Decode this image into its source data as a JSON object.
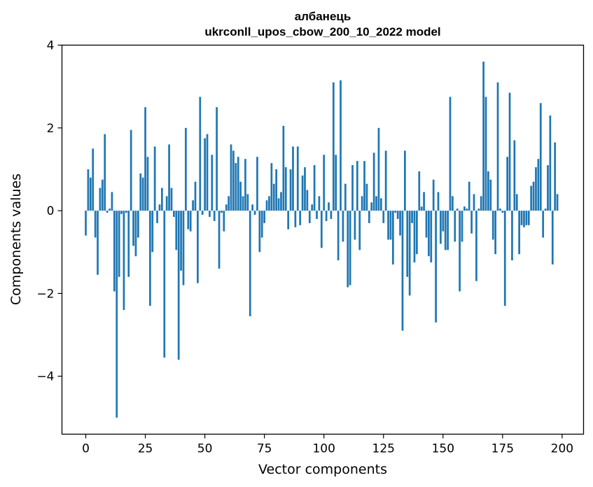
{
  "chart_data": {
    "type": "bar",
    "title_line1": "албанець",
    "title_line2": "ukrconll_upos_cbow_200_10_2022 model",
    "xlabel": "Vector components",
    "ylabel": "Components values",
    "xlim": [
      -10,
      209
    ],
    "ylim": [
      -5.4,
      4.0
    ],
    "xticks": [
      0,
      25,
      50,
      75,
      100,
      125,
      150,
      175,
      200
    ],
    "yticks": [
      -4,
      -2,
      0,
      2,
      4
    ],
    "ytick_labels": [
      "−4",
      "−2",
      "0",
      "2",
      "4"
    ],
    "grid": false,
    "bar_color": "#1f77b4",
    "values": [
      -0.6,
      1.0,
      0.8,
      1.5,
      -0.65,
      -1.55,
      0.55,
      0.75,
      1.85,
      -0.05,
      0.05,
      0.45,
      -1.95,
      -5.0,
      -1.6,
      -0.08,
      -2.4,
      -0.05,
      -1.6,
      1.95,
      -0.85,
      -1.1,
      -0.65,
      0.9,
      0.8,
      2.5,
      1.3,
      -2.3,
      -1.0,
      1.55,
      -0.3,
      0.15,
      0.55,
      -3.55,
      0.35,
      1.6,
      0.55,
      -0.15,
      -0.95,
      -3.6,
      -1.45,
      -1.8,
      2.0,
      -0.45,
      -0.5,
      0.25,
      0.7,
      -1.75,
      2.75,
      -0.1,
      1.75,
      1.85,
      -0.15,
      1.35,
      -0.25,
      2.5,
      -1.4,
      -0.05,
      -0.5,
      0.15,
      0.35,
      1.6,
      1.45,
      1.15,
      1.3,
      0.7,
      0.35,
      1.25,
      0.4,
      -2.55,
      0.15,
      -0.1,
      1.3,
      -1.0,
      -0.65,
      -0.3,
      0.25,
      0.35,
      1.15,
      0.65,
      1.0,
      0.3,
      0.45,
      2.05,
      1.05,
      -0.45,
      1.0,
      1.55,
      -0.4,
      1.55,
      -0.35,
      0.85,
      1.05,
      0.5,
      -0.3,
      0.15,
      1.1,
      -0.2,
      0.35,
      -0.9,
      1.35,
      -0.25,
      0.2,
      -0.2,
      3.1,
      1.35,
      -1.2,
      3.15,
      -0.75,
      0.65,
      -1.85,
      -1.8,
      1.1,
      -0.7,
      1.2,
      -0.95,
      0.35,
      1.2,
      0.65,
      -0.3,
      0.2,
      1.4,
      0.35,
      2.0,
      0.3,
      -0.3,
      1.45,
      -0.7,
      -0.7,
      -1.3,
      -0.05,
      -0.2,
      -0.6,
      -2.9,
      1.45,
      -1.6,
      -2.05,
      -0.3,
      -1.25,
      -1.05,
      0.95,
      0.1,
      0.45,
      -0.65,
      -1.1,
      -1.25,
      0.75,
      -2.7,
      0.45,
      -0.8,
      -0.5,
      -0.95,
      -0.95,
      2.75,
      0.35,
      -0.75,
      0.05,
      -1.95,
      -0.75,
      0.1,
      0.05,
      0.7,
      -0.55,
      0.4,
      -1.7,
      0.05,
      0.35,
      3.6,
      2.75,
      0.95,
      0.75,
      -0.7,
      -1.05,
      3.1,
      0.05,
      -0.05,
      -2.3,
      1.3,
      2.85,
      -1.2,
      1.7,
      0.4,
      -1.05,
      -0.35,
      -0.4,
      -0.35,
      -0.35,
      0.6,
      0.7,
      1.05,
      1.25,
      2.6,
      -0.65,
      0.05,
      1.1,
      2.3,
      -1.3,
      1.65,
      0.4
    ]
  }
}
